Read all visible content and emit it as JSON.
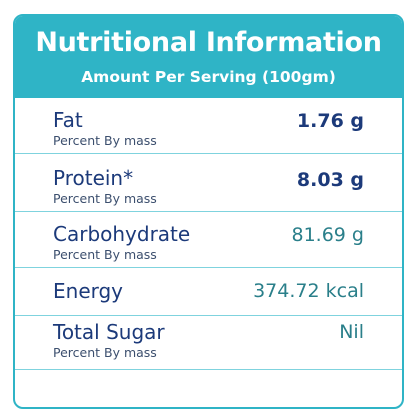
{
  "header": {
    "title": "Nutritional Information",
    "subtitle": "Amount Per Serving (100gm)"
  },
  "rows": [
    {
      "name": "Fat",
      "sub": "Percent By mass",
      "value": "1.76 g"
    },
    {
      "name": "Protein*",
      "sub": "Percent By mass",
      "value": "8.03 g"
    },
    {
      "name": "Carbohydrate",
      "sub": "Percent By mass",
      "value": "81.69 g"
    },
    {
      "name": "Energy",
      "sub": "",
      "value": "374.72 kcal"
    },
    {
      "name": "Total Sugar",
      "sub": "Percent By mass",
      "value": "Nil"
    }
  ],
  "colors": {
    "accent": "#2fb4c6",
    "label": "#1c3a7a",
    "divider": "#7fd3de"
  }
}
